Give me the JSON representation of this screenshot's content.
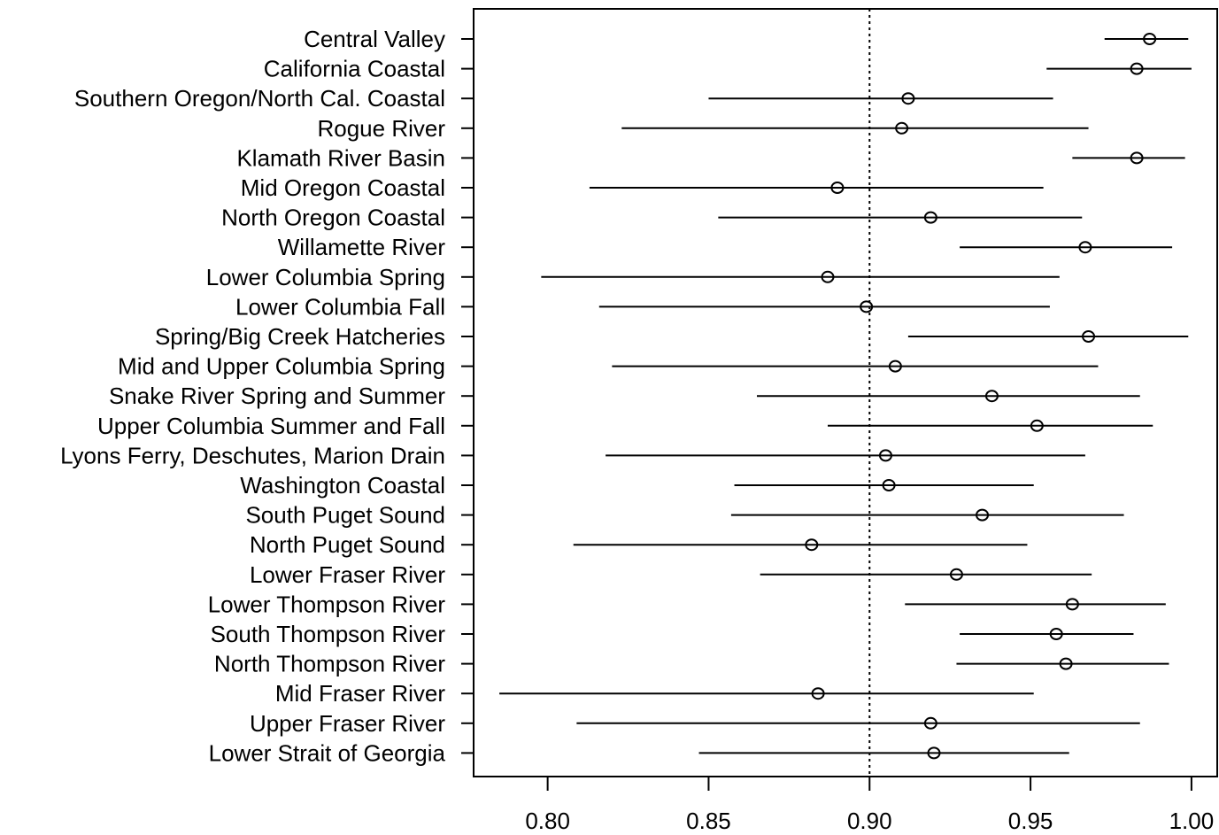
{
  "chart_data": {
    "type": "scatter",
    "title": "",
    "xlabel": "",
    "ylabel": "",
    "xlim": [
      0.777,
      1.008
    ],
    "xticks": [
      0.8,
      0.85,
      0.9,
      0.95,
      1.0
    ],
    "xtick_labels": [
      "0.80",
      "0.85",
      "0.90",
      "0.95",
      "1.00"
    ],
    "reference_line": 0.9,
    "grid": false,
    "categories": [
      "Central Valley",
      "California Coastal",
      "Southern Oregon/North Cal. Coastal",
      "Rogue River",
      "Klamath River Basin",
      "Mid Oregon Coastal",
      "North Oregon Coastal",
      "Willamette River",
      "Lower Columbia Spring",
      "Lower Columbia Fall",
      "Spring/Big Creek Hatcheries",
      "Mid and Upper Columbia Spring",
      "Snake River Spring and Summer",
      "Upper Columbia Summer and Fall",
      "Lyons Ferry, Deschutes, Marion Drain",
      "Washington Coastal",
      "South Puget Sound",
      "North Puget Sound",
      "Lower Fraser River",
      "Lower Thompson River",
      "South Thompson River",
      "North Thompson River",
      "Mid Fraser River",
      "Upper Fraser River",
      "Lower Strait of Georgia"
    ],
    "estimate": [
      0.987,
      0.983,
      0.912,
      0.91,
      0.983,
      0.89,
      0.919,
      0.967,
      0.887,
      0.899,
      0.968,
      0.908,
      0.938,
      0.952,
      0.905,
      0.906,
      0.935,
      0.882,
      0.927,
      0.963,
      0.958,
      0.961,
      0.884,
      0.919,
      0.92
    ],
    "lower": [
      0.973,
      0.955,
      0.85,
      0.823,
      0.963,
      0.813,
      0.853,
      0.928,
      0.798,
      0.816,
      0.912,
      0.82,
      0.865,
      0.887,
      0.818,
      0.858,
      0.857,
      0.808,
      0.866,
      0.911,
      0.928,
      0.927,
      0.785,
      0.809,
      0.847
    ],
    "upper": [
      0.999,
      1.0,
      0.957,
      0.968,
      0.998,
      0.954,
      0.966,
      0.994,
      0.959,
      0.956,
      0.999,
      0.971,
      0.984,
      0.988,
      0.967,
      0.951,
      0.979,
      0.949,
      0.969,
      0.992,
      0.982,
      0.993,
      0.951,
      0.984,
      0.962
    ]
  }
}
